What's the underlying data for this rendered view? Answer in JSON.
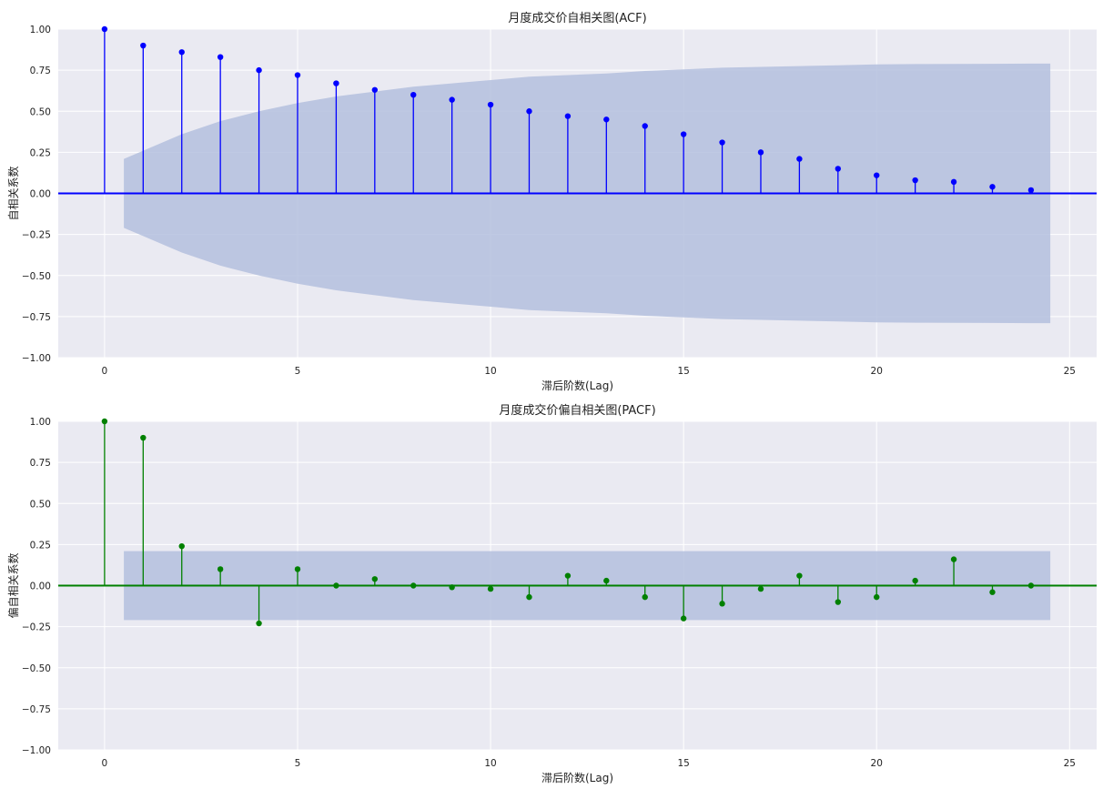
{
  "chart_data": [
    {
      "type": "stem",
      "title": "月度成交价自相关图(ACF)",
      "xlabel": "滞后阶数(Lag)",
      "ylabel": "自相关系数",
      "xlim": [
        -1.2,
        25.7
      ],
      "ylim": [
        -1.0,
        1.0
      ],
      "x_ticks": [
        "0",
        "5",
        "10",
        "15",
        "20",
        "25"
      ],
      "y_ticks": [
        "1.00",
        "0.75",
        "0.50",
        "0.25",
        "0.00",
        "−0.25",
        "−0.50",
        "−0.75",
        "−1.00"
      ],
      "grid": true,
      "color": "#0000ff",
      "band_color": "#b4c0de",
      "lags": [
        0,
        1,
        2,
        3,
        4,
        5,
        6,
        7,
        8,
        9,
        10,
        11,
        12,
        13,
        14,
        15,
        16,
        17,
        18,
        19,
        20,
        21,
        22,
        23,
        24
      ],
      "values": [
        1.0,
        0.9,
        0.86,
        0.83,
        0.75,
        0.72,
        0.67,
        0.63,
        0.6,
        0.57,
        0.54,
        0.5,
        0.47,
        0.45,
        0.41,
        0.36,
        0.31,
        0.25,
        0.21,
        0.15,
        0.11,
        0.08,
        0.07,
        0.04,
        0.02
      ],
      "confidence_band": {
        "x": [
          0.5,
          1,
          2,
          3,
          4,
          5,
          6,
          7,
          8,
          9,
          10,
          11,
          12,
          13,
          14,
          15,
          16,
          17,
          18,
          19,
          20,
          21,
          22,
          23,
          24,
          24.5
        ],
        "upper": [
          0.21,
          0.26,
          0.36,
          0.44,
          0.5,
          0.55,
          0.59,
          0.62,
          0.65,
          0.67,
          0.69,
          0.71,
          0.72,
          0.73,
          0.745,
          0.755,
          0.765,
          0.77,
          0.775,
          0.78,
          0.785,
          0.787,
          0.788,
          0.789,
          0.79,
          0.79
        ]
      }
    },
    {
      "type": "stem",
      "title": "月度成交价偏自相关图(PACF)",
      "xlabel": "滞后阶数(Lag)",
      "ylabel": "偏自相关系数",
      "xlim": [
        -1.2,
        25.7
      ],
      "ylim": [
        -1.0,
        1.0
      ],
      "x_ticks": [
        "0",
        "5",
        "10",
        "15",
        "20",
        "25"
      ],
      "y_ticks": [
        "1.00",
        "0.75",
        "0.50",
        "0.25",
        "0.00",
        "−0.25",
        "−0.50",
        "−0.75",
        "−1.00"
      ],
      "grid": true,
      "color": "#008000",
      "band_color": "#b4c0de",
      "lags": [
        0,
        1,
        2,
        3,
        4,
        5,
        6,
        7,
        8,
        9,
        10,
        11,
        12,
        13,
        14,
        15,
        16,
        17,
        18,
        19,
        20,
        21,
        22,
        23,
        24
      ],
      "values": [
        1.0,
        0.9,
        0.24,
        0.1,
        -0.23,
        0.1,
        0.0,
        0.04,
        0.0,
        -0.01,
        -0.02,
        -0.07,
        0.06,
        0.03,
        -0.07,
        -0.2,
        -0.11,
        -0.02,
        0.06,
        -0.1,
        -0.07,
        0.03,
        0.16,
        -0.04,
        0.0
      ],
      "confidence_band": {
        "x": [
          0.5,
          24.5
        ],
        "upper": [
          0.21,
          0.21
        ]
      }
    }
  ]
}
